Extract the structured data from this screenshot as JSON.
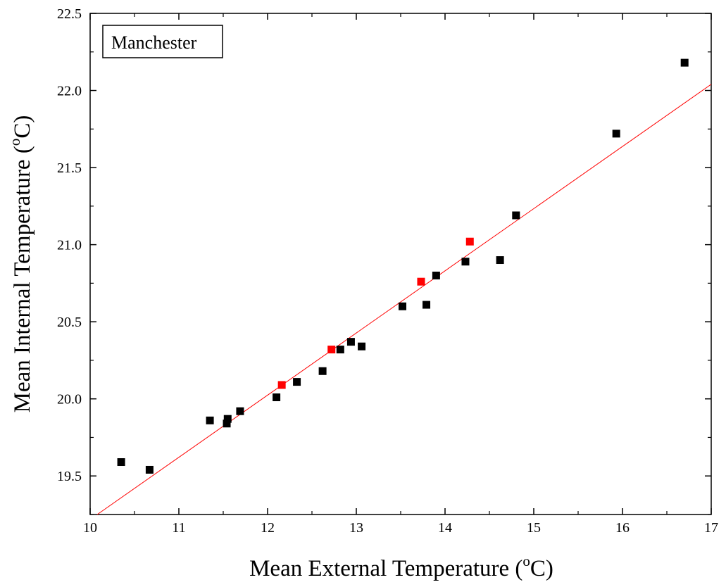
{
  "chart_data": {
    "type": "scatter",
    "title": "",
    "xlabel": {
      "main": "Mean External Temperature (",
      "sup": "o",
      "unit": "C)"
    },
    "ylabel": {
      "main": "Mean Internal Temperature (",
      "sup": "o",
      "unit": "C)"
    },
    "xlim": [
      10,
      17
    ],
    "ylim": [
      19.25,
      22.5
    ],
    "x_ticks": [
      "10",
      "11",
      "12",
      "13",
      "14",
      "15",
      "16",
      "17"
    ],
    "y_ticks": [
      "19.5",
      "20.0",
      "20.5",
      "21.0",
      "21.5",
      "22.0",
      "22.5"
    ],
    "legend_label": "Manchester",
    "legend_position": "top-left",
    "grid": false,
    "series": [
      {
        "color": "#000000",
        "marker": "square",
        "points": [
          [
            10.35,
            19.59
          ],
          [
            10.67,
            19.54
          ],
          [
            11.35,
            19.86
          ],
          [
            11.54,
            19.84
          ],
          [
            11.55,
            19.87
          ],
          [
            11.69,
            19.92
          ],
          [
            12.1,
            20.01
          ],
          [
            12.33,
            20.11
          ],
          [
            12.62,
            20.18
          ],
          [
            12.82,
            20.32
          ],
          [
            12.94,
            20.37
          ],
          [
            13.06,
            20.34
          ],
          [
            13.52,
            20.6
          ],
          [
            13.79,
            20.61
          ],
          [
            13.9,
            20.8
          ],
          [
            14.23,
            20.89
          ],
          [
            14.62,
            20.9
          ],
          [
            14.8,
            21.19
          ],
          [
            15.93,
            21.72
          ],
          [
            16.7,
            22.18
          ]
        ]
      },
      {
        "color": "#ff0000",
        "marker": "square",
        "points": [
          [
            12.16,
            20.09
          ],
          [
            12.72,
            20.32
          ],
          [
            13.73,
            20.76
          ],
          [
            14.28,
            21.02
          ]
        ]
      }
    ],
    "fit_line": {
      "color": "#ff0000",
      "x": [
        10.08,
        17.0
      ],
      "y": [
        19.25,
        22.04
      ]
    }
  }
}
